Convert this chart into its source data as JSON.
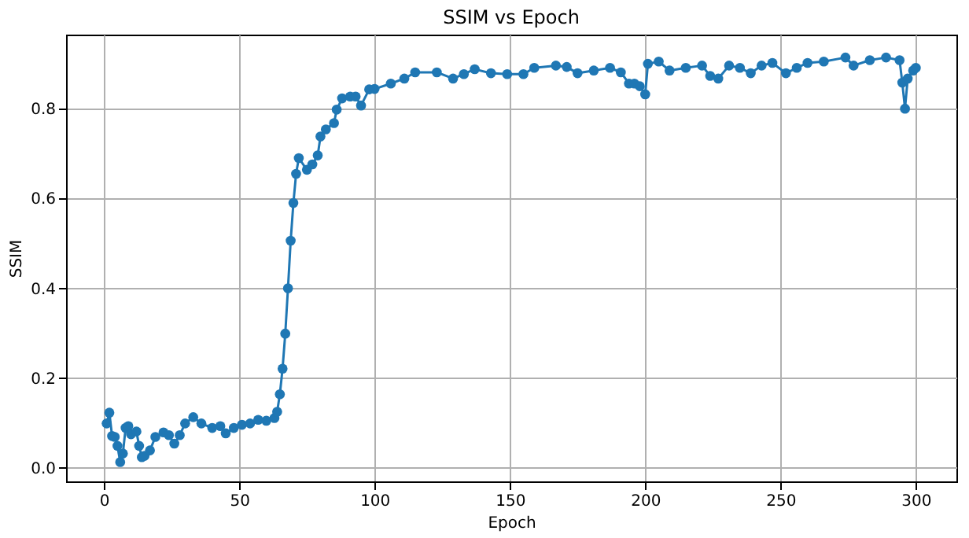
{
  "chart_data": {
    "type": "line",
    "title": "SSIM vs Epoch",
    "xlabel": "Epoch",
    "ylabel": "SSIM",
    "x": [
      1,
      2,
      3,
      4,
      5,
      6,
      7,
      8,
      9,
      10,
      12,
      13,
      14,
      15,
      17,
      19,
      22,
      24,
      26,
      28,
      30,
      33,
      36,
      40,
      43,
      45,
      48,
      51,
      54,
      57,
      60,
      63,
      64,
      65,
      66,
      67,
      68,
      69,
      70,
      71,
      72,
      75,
      77,
      79,
      80,
      82,
      85,
      86,
      88,
      91,
      93,
      95,
      98,
      100,
      106,
      111,
      115,
      123,
      129,
      133,
      137,
      143,
      149,
      155,
      159,
      167,
      171,
      175,
      181,
      187,
      191,
      194,
      196,
      198,
      200,
      201,
      205,
      209,
      215,
      221,
      224,
      227,
      231,
      235,
      239,
      243,
      247,
      252,
      256,
      260,
      266,
      274,
      277,
      283,
      289,
      294,
      295,
      296,
      297,
      299,
      300
    ],
    "series": [
      {
        "color": "#1f77b4",
        "values": [
          0.099,
          0.123,
          0.071,
          0.069,
          0.049,
          0.013,
          0.032,
          0.089,
          0.093,
          0.075,
          0.081,
          0.049,
          0.024,
          0.027,
          0.039,
          0.069,
          0.079,
          0.073,
          0.054,
          0.073,
          0.099,
          0.113,
          0.099,
          0.089,
          0.093,
          0.077,
          0.089,
          0.096,
          0.099,
          0.107,
          0.105,
          0.111,
          0.125,
          0.164,
          0.221,
          0.299,
          0.4,
          0.506,
          0.59,
          0.655,
          0.69,
          0.664,
          0.676,
          0.696,
          0.738,
          0.754,
          0.768,
          0.798,
          0.823,
          0.827,
          0.827,
          0.807,
          0.843,
          0.844,
          0.856,
          0.867,
          0.881,
          0.881,
          0.867,
          0.877,
          0.888,
          0.879,
          0.877,
          0.877,
          0.891,
          0.896,
          0.893,
          0.879,
          0.885,
          0.891,
          0.881,
          0.856,
          0.856,
          0.85,
          0.832,
          0.9,
          0.905,
          0.885,
          0.891,
          0.896,
          0.873,
          0.867,
          0.896,
          0.891,
          0.879,
          0.896,
          0.902,
          0.879,
          0.891,
          0.902,
          0.905,
          0.914,
          0.896,
          0.908,
          0.914,
          0.908,
          0.858,
          0.8,
          0.867,
          0.885,
          0.891
        ]
      }
    ],
    "xlim": [
      -14,
      315
    ],
    "xticks": [
      0,
      50,
      100,
      150,
      200,
      250,
      300
    ],
    "ylim": [
      -0.03,
      0.965
    ],
    "yticks": [
      {
        "value": 0,
        "label": "0.0"
      },
      {
        "value": 0.2,
        "label": "0.2"
      },
      {
        "value": 0.4,
        "label": "0.4"
      },
      {
        "value": 0.6,
        "label": "0.6"
      },
      {
        "value": 0.8,
        "label": "0.8"
      }
    ],
    "grid": true,
    "marker": "circle",
    "line_style": "solid"
  }
}
